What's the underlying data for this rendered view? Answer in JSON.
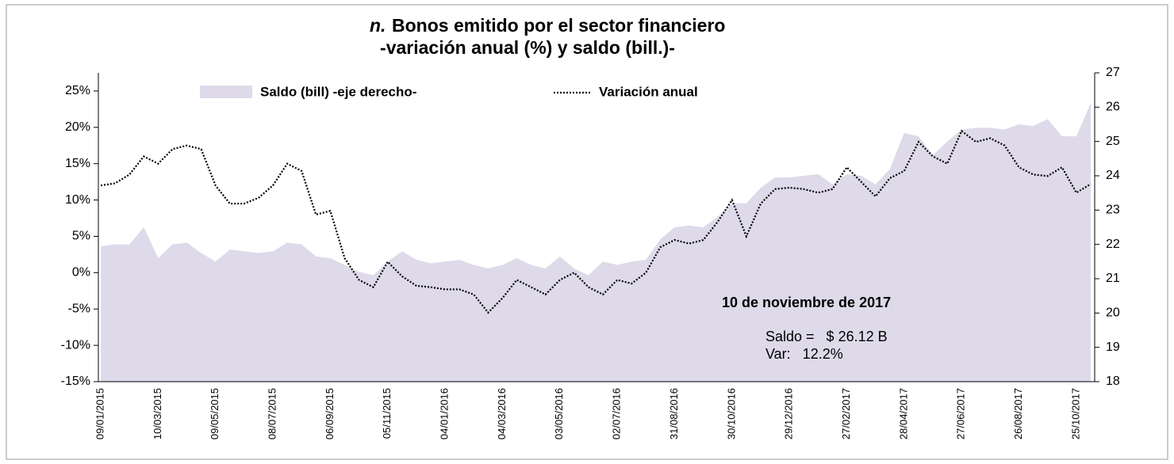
{
  "chart_data": {
    "type": "area-line",
    "title_label": "n.",
    "title": "Bonos emitido por el sector financiero",
    "subtitle": "-variación anual (%) y saldo (bill.)-",
    "categories": [
      "09/01/2015",
      null,
      null,
      null,
      "10/03/2015",
      null,
      null,
      null,
      "09/05/2015",
      null,
      null,
      null,
      "08/07/2015",
      null,
      null,
      null,
      "06/09/2015",
      null,
      null,
      null,
      "05/11/2015",
      null,
      null,
      null,
      "04/01/2016",
      null,
      null,
      null,
      "04/03/2016",
      null,
      null,
      null,
      "03/05/2016",
      null,
      null,
      null,
      "02/07/2016",
      null,
      null,
      null,
      "31/08/2016",
      null,
      null,
      null,
      "30/10/2016",
      null,
      null,
      null,
      "29/12/2016",
      null,
      null,
      null,
      "27/02/2017",
      null,
      null,
      null,
      "28/04/2017",
      null,
      null,
      null,
      "27/06/2017",
      null,
      null,
      null,
      "26/08/2017",
      null,
      null,
      null,
      "25/10/2017",
      null
    ],
    "series": [
      {
        "name": "Saldo (bill) -eje derecho-",
        "color": "#dedaea",
        "axis": "y2",
        "style": "area",
        "values": [
          21.95,
          22.0,
          22.0,
          22.5,
          21.6,
          22.0,
          22.05,
          21.75,
          21.5,
          21.85,
          21.8,
          21.75,
          21.8,
          22.05,
          22.0,
          21.65,
          21.6,
          21.4,
          21.2,
          21.1,
          21.5,
          21.8,
          21.55,
          21.45,
          21.5,
          21.55,
          21.4,
          21.3,
          21.4,
          21.6,
          21.4,
          21.3,
          21.65,
          21.3,
          21.1,
          21.5,
          21.4,
          21.5,
          21.55,
          22.15,
          22.5,
          22.55,
          22.5,
          22.8,
          23.2,
          23.2,
          23.65,
          23.95,
          23.95,
          24.0,
          24.05,
          23.75,
          24.05,
          24.0,
          23.75,
          24.2,
          25.25,
          25.15,
          24.6,
          25.0,
          25.35,
          25.4,
          25.4,
          25.35,
          25.5,
          25.45,
          25.65,
          25.15,
          25.15,
          26.12
        ]
      },
      {
        "name": "Variación anual",
        "color": "#000000",
        "style": "dotted",
        "values": [
          12,
          12.3,
          13.5,
          16,
          15,
          17,
          17.5,
          17,
          12,
          9.5,
          9.5,
          10.3,
          12,
          15,
          14,
          8,
          8.5,
          2,
          -1,
          -2,
          1.5,
          -0.5,
          -1.8,
          -2,
          -2.3,
          -2.3,
          -3,
          -5.5,
          -3.5,
          -1,
          -2,
          -3,
          -1,
          0,
          -2,
          -3,
          -1,
          -1.5,
          0,
          3.5,
          4.5,
          4,
          4.5,
          7,
          10,
          5,
          9.5,
          11.5,
          11.7,
          11.5,
          11,
          11.5,
          14.5,
          12.5,
          10.5,
          13,
          14,
          18,
          16,
          15,
          19.5,
          18,
          18.5,
          17.5,
          14.5,
          13.5,
          13.3,
          14.5,
          11,
          12.2
        ]
      }
    ],
    "ylim": [
      -15,
      27.5
    ],
    "yticks": [
      {
        "value": -15,
        "label": "-15%"
      },
      {
        "value": -10,
        "label": "-10%"
      },
      {
        "value": -5,
        "label": "-5%"
      },
      {
        "value": 0,
        "label": "0%"
      },
      {
        "value": 5,
        "label": "5%"
      },
      {
        "value": 10,
        "label": "10%"
      },
      {
        "value": 15,
        "label": "15%"
      },
      {
        "value": 20,
        "label": "20%"
      },
      {
        "value": 25,
        "label": "25%"
      }
    ],
    "y2lim": [
      18,
      27
    ],
    "y2ticks": [
      18,
      19,
      20,
      21,
      22,
      23,
      24,
      25,
      26,
      27
    ],
    "annotations": [
      "10 de noviembre de 2017",
      "Saldo =   $ 26.12 B",
      "Var:   12.2%"
    ],
    "legend": "top-left"
  }
}
